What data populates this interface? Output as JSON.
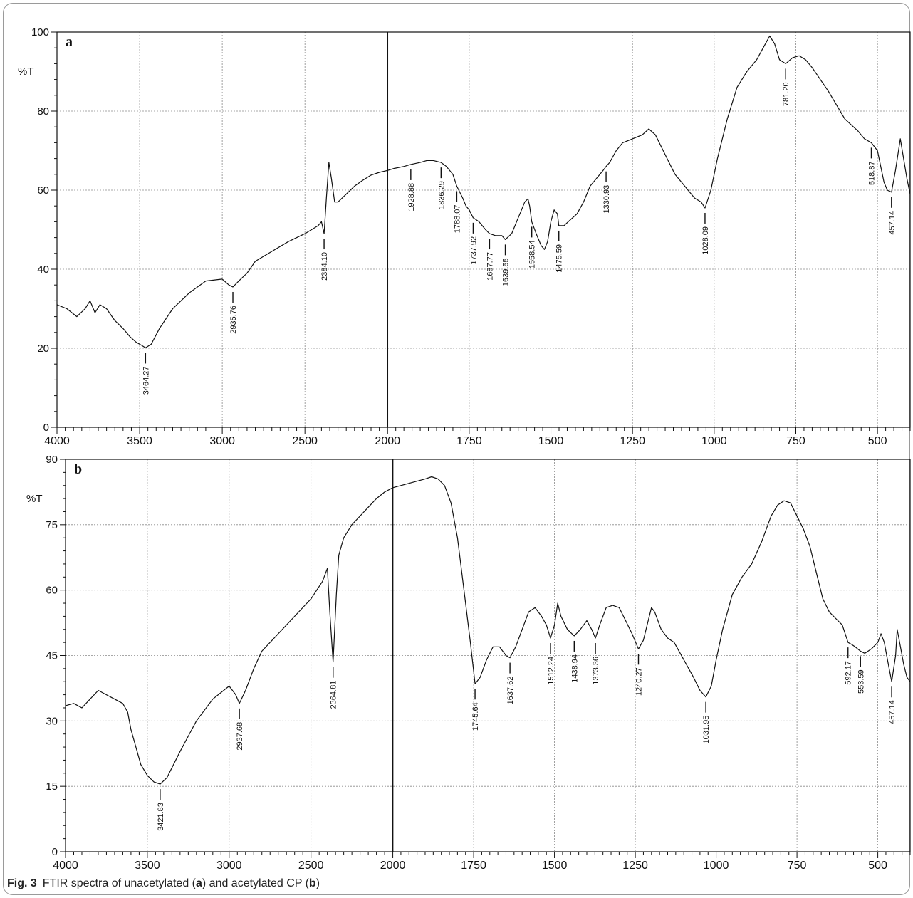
{
  "figure": {
    "caption_label": "Fig. 3",
    "caption_parts": [
      "FTIR spectra of unacetylated (",
      "a",
      ") and acetylated CP (",
      "b",
      ")"
    ]
  },
  "chart_data": [
    {
      "type": "line",
      "panel_label": "a",
      "ylabel": "%T",
      "xlabel": "",
      "xlim": [
        4000,
        400
      ],
      "ylim": [
        0,
        100
      ],
      "x_split_at": 2000,
      "x_ticks": [
        4000,
        3500,
        3000,
        2500,
        2000,
        1750,
        1500,
        1250,
        1000,
        750,
        500
      ],
      "y_ticks": [
        0,
        20,
        40,
        60,
        80,
        100
      ],
      "grid": true,
      "series": [
        {
          "x": [
            4000,
            3940,
            3880,
            3830,
            3800,
            3770,
            3740,
            3700,
            3650,
            3600,
            3560,
            3520,
            3490,
            3464.27,
            3430,
            3380,
            3300,
            3200,
            3100,
            3000,
            2960,
            2935.76,
            2900,
            2850,
            2800,
            2700,
            2600,
            2500,
            2420,
            2400,
            2384.1,
            2370,
            2355,
            2340,
            2320,
            2300,
            2250,
            2200,
            2150,
            2100,
            2050,
            2000,
            1980,
            1950,
            1928.88,
            1900,
            1880,
            1860,
            1836.29,
            1820,
            1800,
            1788.07,
            1770,
            1760,
            1750,
            1737.92,
            1720,
            1700,
            1687.77,
            1670,
            1650,
            1639.55,
            1620,
            1600,
            1590,
            1580,
            1570,
            1565,
            1558.54,
            1545,
            1530,
            1520,
            1510,
            1500,
            1490,
            1480,
            1475.59,
            1460,
            1440,
            1420,
            1400,
            1380,
            1360,
            1340,
            1330.93,
            1320,
            1300,
            1280,
            1250,
            1220,
            1200,
            1180,
            1150,
            1120,
            1100,
            1080,
            1060,
            1040,
            1028.09,
            1010,
            990,
            960,
            930,
            900,
            870,
            850,
            830,
            815,
            800,
            781.2,
            760,
            740,
            720,
            700,
            650,
            600,
            560,
            540,
            518.87,
            500,
            480,
            470,
            457.14,
            445,
            430,
            420,
            410,
            400
          ],
          "y": [
            31,
            30,
            28,
            30,
            32,
            29,
            31,
            30,
            27,
            25,
            23,
            21.5,
            20.8,
            20.1,
            21,
            25,
            30,
            34,
            37,
            37.5,
            36,
            35.5,
            37,
            39,
            42,
            44.5,
            47,
            49,
            51,
            52,
            49,
            58,
            67,
            63,
            57,
            57,
            59,
            61,
            62.5,
            63.8,
            64.5,
            65,
            65.5,
            66,
            66.5,
            67,
            67.5,
            67.5,
            67,
            66,
            64,
            61,
            58,
            56,
            55,
            53,
            52,
            50,
            49,
            48.5,
            48.5,
            47.5,
            49,
            53,
            55,
            57,
            57.8,
            56,
            52,
            49,
            46,
            45,
            47,
            52,
            55,
            54,
            51,
            51,
            52.5,
            54,
            57,
            61,
            63,
            65,
            66,
            67,
            70,
            72,
            73,
            74,
            75.5,
            74,
            69,
            64,
            62,
            60,
            58,
            57,
            55.5,
            60,
            68,
            78,
            86,
            90,
            93,
            96,
            99,
            97,
            93,
            92,
            93.5,
            94,
            93,
            91,
            85,
            78,
            75,
            73,
            72,
            70,
            62,
            60,
            59.5,
            65,
            73,
            68,
            63,
            59
          ]
        }
      ],
      "annotations": [
        {
          "x": 3464.27,
          "label": "3464.27"
        },
        {
          "x": 2935.76,
          "label": "2935.76"
        },
        {
          "x": 2384.1,
          "label": "2384.10"
        },
        {
          "x": 1928.88,
          "label": "1928.88"
        },
        {
          "x": 1836.29,
          "label": "1836.29"
        },
        {
          "x": 1788.07,
          "label": "1788.07"
        },
        {
          "x": 1737.92,
          "label": "1737.92"
        },
        {
          "x": 1687.77,
          "label": "1687.77"
        },
        {
          "x": 1639.55,
          "label": "1639.55"
        },
        {
          "x": 1558.54,
          "label": "1558.54"
        },
        {
          "x": 1475.59,
          "label": "1475.59"
        },
        {
          "x": 1330.93,
          "label": "1330.93"
        },
        {
          "x": 1028.09,
          "label": "1028.09"
        },
        {
          "x": 781.2,
          "label": "781.20"
        },
        {
          "x": 518.87,
          "label": "518.87"
        },
        {
          "x": 457.14,
          "label": "457.14"
        }
      ]
    },
    {
      "type": "line",
      "panel_label": "b",
      "ylabel": "%T",
      "xlabel": "",
      "xlim": [
        4000,
        400
      ],
      "ylim": [
        0,
        90
      ],
      "x_split_at": 2000,
      "x_ticks": [
        4000,
        3500,
        3000,
        2500,
        2000,
        1750,
        1500,
        1250,
        1000,
        750,
        500
      ],
      "y_ticks": [
        0,
        15,
        30,
        45,
        60,
        75,
        90
      ],
      "grid": true,
      "series": [
        {
          "x": [
            4000,
            3950,
            3900,
            3850,
            3800,
            3750,
            3700,
            3650,
            3620,
            3600,
            3570,
            3540,
            3500,
            3460,
            3421.83,
            3380,
            3300,
            3200,
            3100,
            3000,
            2960,
            2937.68,
            2900,
            2850,
            2800,
            2700,
            2600,
            2500,
            2430,
            2400,
            2385,
            2364.81,
            2345,
            2330,
            2300,
            2250,
            2200,
            2150,
            2100,
            2050,
            2000,
            1950,
            1900,
            1880,
            1860,
            1840,
            1820,
            1800,
            1780,
            1760,
            1745.64,
            1730,
            1710,
            1690,
            1670,
            1650,
            1637.62,
            1620,
            1600,
            1580,
            1560,
            1540,
            1525,
            1512.24,
            1500,
            1490,
            1480,
            1460,
            1438.94,
            1420,
            1400,
            1385,
            1373.36,
            1360,
            1340,
            1320,
            1300,
            1280,
            1260,
            1240.27,
            1225,
            1210,
            1200,
            1190,
            1170,
            1150,
            1130,
            1100,
            1070,
            1050,
            1031.95,
            1015,
            1000,
            980,
            950,
            920,
            890,
            860,
            830,
            810,
            790,
            770,
            750,
            730,
            710,
            690,
            670,
            650,
            630,
            610,
            592.17,
            580,
            570,
            553.59,
            540,
            520,
            500,
            490,
            480,
            470,
            457.14,
            445,
            440,
            430,
            420,
            410,
            400
          ],
          "y": [
            33.5,
            34,
            33,
            35,
            37,
            36,
            35,
            34,
            32,
            28,
            24,
            20,
            17.5,
            16,
            15.5,
            17,
            23,
            30,
            35,
            38,
            36,
            34,
            37,
            42,
            46,
            50,
            54,
            58,
            62,
            65,
            55,
            43.5,
            59,
            68,
            72,
            75,
            77,
            79,
            81,
            82.5,
            83.5,
            84.5,
            85.5,
            86,
            85.5,
            84,
            80,
            72,
            60,
            48,
            38.5,
            40,
            44,
            47,
            47,
            45,
            44.5,
            47,
            51,
            55,
            56,
            54,
            52,
            49,
            52,
            57,
            54,
            51,
            49.5,
            51,
            53,
            51,
            49,
            52,
            56,
            56.5,
            56,
            53,
            50,
            46.5,
            48.5,
            53,
            56,
            55,
            51,
            49,
            48,
            44,
            40,
            37,
            35.5,
            38,
            44,
            51,
            59,
            63,
            66,
            71,
            77,
            79.5,
            80.5,
            80,
            77,
            74,
            70,
            64,
            58,
            55,
            53.5,
            52,
            48,
            47.5,
            47,
            46,
            45.5,
            46.5,
            48,
            50,
            48,
            44,
            39,
            45,
            51,
            47,
            43,
            40,
            39
          ]
        }
      ],
      "annotations": [
        {
          "x": 3421.83,
          "label": "3421.83"
        },
        {
          "x": 2937.68,
          "label": "2937.68"
        },
        {
          "x": 2364.81,
          "label": "2364.81"
        },
        {
          "x": 1745.64,
          "label": "1745.64"
        },
        {
          "x": 1637.62,
          "label": "1637.62"
        },
        {
          "x": 1512.24,
          "label": "1512.24"
        },
        {
          "x": 1438.94,
          "label": "1438.94"
        },
        {
          "x": 1373.36,
          "label": "1373.36"
        },
        {
          "x": 1240.27,
          "label": "1240.27"
        },
        {
          "x": 1031.95,
          "label": "1031.95"
        },
        {
          "x": 592.17,
          "label": "592.17"
        },
        {
          "x": 553.59,
          "label": "553.59"
        },
        {
          "x": 457.14,
          "label": "457.14"
        }
      ]
    }
  ]
}
